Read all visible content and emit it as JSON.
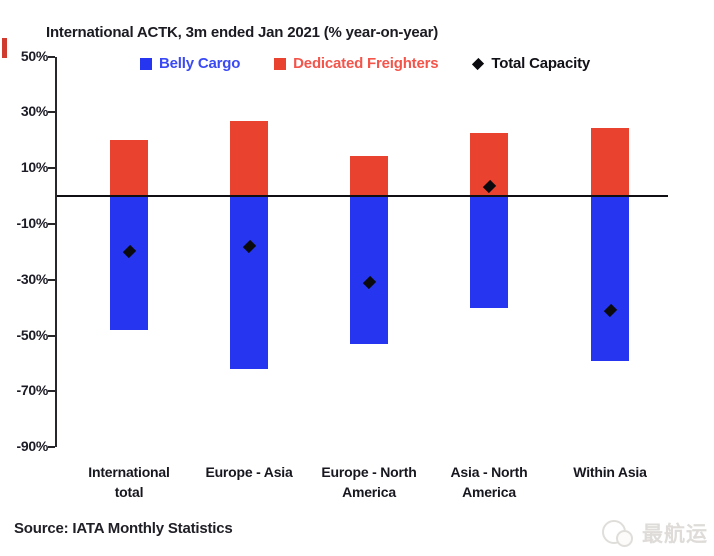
{
  "page": {
    "source": "Source: IATA Monthly Statistics",
    "watermark_text": "最航运",
    "background": "#ffffff",
    "left_edge_mark_color": "#cf3b2e"
  },
  "legend": {
    "items": [
      {
        "label": "Belly Cargo",
        "marker": "square",
        "marker_color": "#2636f0",
        "text_color": "#3a4af5"
      },
      {
        "label": "Dedicated Freighters",
        "marker": "square",
        "marker_color": "#e9422f",
        "text_color": "#f3554b"
      },
      {
        "label": "Total Capacity",
        "marker": "diamond",
        "marker_color": "#0b0b0f",
        "text_color": "#111118"
      }
    ]
  },
  "chart_data": {
    "type": "bar",
    "title": "International ACTK, 3m ended Jan 2021 (% year-on-year)",
    "categories": [
      "International\ntotal",
      "Europe - Asia",
      "Europe - North\nAmerica",
      "Asia - North\nAmerica",
      "Within Asia"
    ],
    "series": [
      {
        "name": "Belly Cargo",
        "type": "bar",
        "color": "#2636f0",
        "values": [
          -48,
          -62,
          -53,
          -40,
          -59
        ]
      },
      {
        "name": "Dedicated Freighters",
        "type": "bar",
        "color": "#e9422f",
        "values": [
          20,
          27,
          14.5,
          22.5,
          24.5
        ]
      },
      {
        "name": "Total Capacity",
        "type": "scatter",
        "marker": "diamond",
        "color": "#0b0b0f",
        "values": [
          -20,
          -18,
          -31,
          3.5,
          -41
        ]
      }
    ],
    "xlabel": "",
    "ylabel": "",
    "ytick_suffix": "%",
    "yticks": [
      50,
      30,
      10,
      -10,
      -30,
      -50,
      -70,
      -90
    ],
    "ylim": [
      -90,
      50
    ],
    "baseline": 0,
    "grid": false,
    "legend_position": "top"
  }
}
